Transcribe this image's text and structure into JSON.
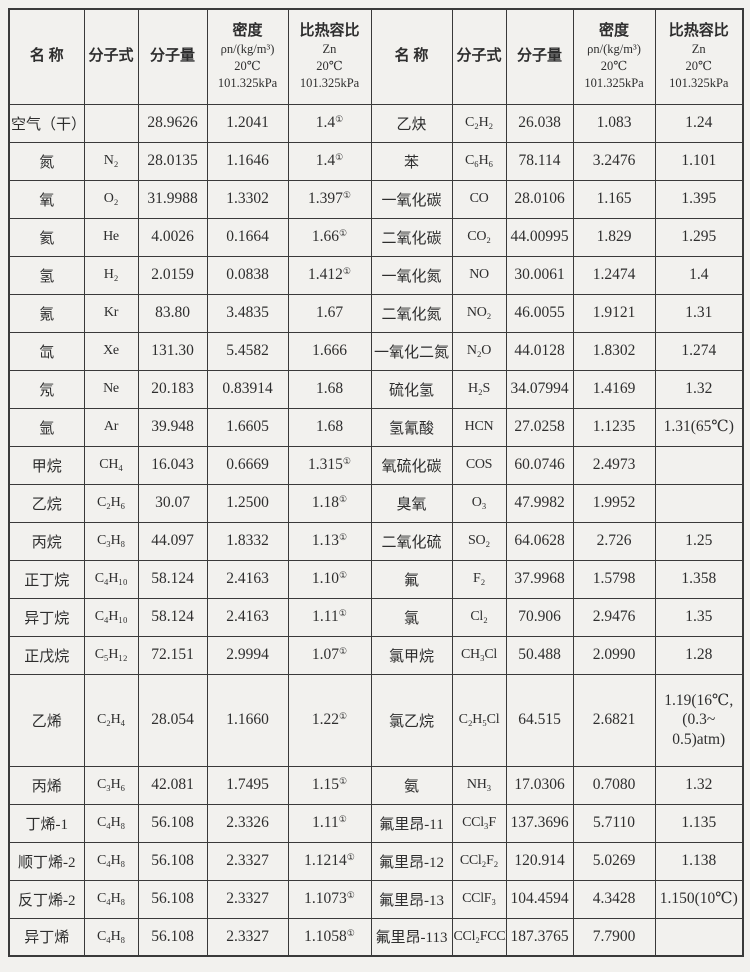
{
  "table": {
    "headers": [
      {
        "title": "名  称",
        "sub": ""
      },
      {
        "title": "分子式",
        "sub": ""
      },
      {
        "title": "分子量",
        "sub": ""
      },
      {
        "title": "密度",
        "sub": "ρn/(kg/m³)\n20℃\n101.325kPa"
      },
      {
        "title": "比热容比",
        "sub": "Zn\n20℃\n101.325kPa"
      }
    ],
    "tall_row_index": 15,
    "left_rows": [
      [
        "空气（干）",
        "",
        "28.9626",
        "1.2041",
        "1.4①"
      ],
      [
        "氮",
        "N₂",
        "28.0135",
        "1.1646",
        "1.4①"
      ],
      [
        "氧",
        "O₂",
        "31.9988",
        "1.3302",
        "1.397①"
      ],
      [
        "氦",
        "He",
        "4.0026",
        "0.1664",
        "1.66①"
      ],
      [
        "氢",
        "H₂",
        "2.0159",
        "0.0838",
        "1.412①"
      ],
      [
        "氪",
        "Kr",
        "83.80",
        "3.4835",
        "1.67"
      ],
      [
        "氙",
        "Xe",
        "131.30",
        "5.4582",
        "1.666"
      ],
      [
        "氖",
        "Ne",
        "20.183",
        "0.83914",
        "1.68"
      ],
      [
        "氩",
        "Ar",
        "39.948",
        "1.6605",
        "1.68"
      ],
      [
        "甲烷",
        "CH₄",
        "16.043",
        "0.6669",
        "1.315①"
      ],
      [
        "乙烷",
        "C₂H₆",
        "30.07",
        "1.2500",
        "1.18①"
      ],
      [
        "丙烷",
        "C₃H₈",
        "44.097",
        "1.8332",
        "1.13①"
      ],
      [
        "正丁烷",
        "C₄H₁₀",
        "58.124",
        "2.4163",
        "1.10①"
      ],
      [
        "异丁烷",
        "C₄H₁₀",
        "58.124",
        "2.4163",
        "1.11①"
      ],
      [
        "正戊烷",
        "C₅H₁₂",
        "72.151",
        "2.9994",
        "1.07①"
      ],
      [
        "乙烯",
        "C₂H₄",
        "28.054",
        "1.1660",
        "1.22①"
      ],
      [
        "丙烯",
        "C₃H₆",
        "42.081",
        "1.7495",
        "1.15①"
      ],
      [
        "丁烯-1",
        "C₄H₈",
        "56.108",
        "2.3326",
        "1.11①"
      ],
      [
        "顺丁烯-2",
        "C₄H₈",
        "56.108",
        "2.3327",
        "1.1214①"
      ],
      [
        "反丁烯-2",
        "C₄H₈",
        "56.108",
        "2.3327",
        "1.1073①"
      ],
      [
        "异丁烯",
        "C₄H₈",
        "56.108",
        "2.3327",
        "1.1058①"
      ]
    ],
    "right_rows": [
      [
        "乙炔",
        "C₂H₂",
        "26.038",
        "1.083",
        "1.24"
      ],
      [
        "苯",
        "C₆H₆",
        "78.114",
        "3.2476",
        "1.101"
      ],
      [
        "一氧化碳",
        "CO",
        "28.0106",
        "1.165",
        "1.395"
      ],
      [
        "二氧化碳",
        "CO₂",
        "44.00995",
        "1.829",
        "1.295"
      ],
      [
        "一氧化氮",
        "NO",
        "30.0061",
        "1.2474",
        "1.4"
      ],
      [
        "二氧化氮",
        "NO₂",
        "46.0055",
        "1.9121",
        "1.31"
      ],
      [
        "一氧化二氮",
        "N₂O",
        "44.0128",
        "1.8302",
        "1.274"
      ],
      [
        "硫化氢",
        "H₂S",
        "34.07994",
        "1.4169",
        "1.32"
      ],
      [
        "氢氰酸",
        "HCN",
        "27.0258",
        "1.1235",
        "1.31(65℃)"
      ],
      [
        "氧硫化碳",
        "COS",
        "60.0746",
        "2.4973",
        ""
      ],
      [
        "臭氧",
        "O₃",
        "47.9982",
        "1.9952",
        ""
      ],
      [
        "二氧化硫",
        "SO₂",
        "64.0628",
        "2.726",
        "1.25"
      ],
      [
        "氟",
        "F₂",
        "37.9968",
        "1.5798",
        "1.358"
      ],
      [
        "氯",
        "Cl₂",
        "70.906",
        "2.9476",
        "1.35"
      ],
      [
        "氯甲烷",
        "CH₃Cl",
        "50.488",
        "2.0990",
        "1.28"
      ],
      [
        "氯乙烷",
        "C₂H₅Cl",
        "64.515",
        "2.6821",
        "1.19(16℃,\n(0.3~\n0.5)atm)"
      ],
      [
        "氨",
        "NH₃",
        "17.0306",
        "0.7080",
        "1.32"
      ],
      [
        "氟里昂-11",
        "CCl₃F",
        "137.3696",
        "5.7110",
        "1.135"
      ],
      [
        "氟里昂-12",
        "CCl₂F₂",
        "120.914",
        "5.0269",
        "1.138"
      ],
      [
        "氟里昂-13",
        "CClF₃",
        "104.4594",
        "4.3428",
        "1.150(10℃)"
      ],
      [
        "氟里昂-113",
        "CCl₂FCClF₂",
        "187.3765",
        "7.7900",
        ""
      ]
    ]
  },
  "colors": {
    "page_background": "#f2f1ee",
    "grid_line": "#3a3a3a",
    "text": "#2e2e2e"
  }
}
